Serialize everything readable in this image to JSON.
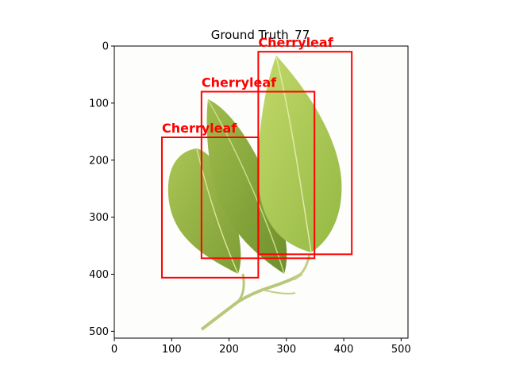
{
  "figure": {
    "title": "Ground Truth_77",
    "image": {
      "width": 512,
      "height": 512,
      "subject": "cherry leaves on white background"
    },
    "x_axis": {
      "ticks": [
        0,
        100,
        200,
        300,
        400,
        500
      ]
    },
    "y_axis": {
      "ticks": [
        0,
        100,
        200,
        300,
        400,
        500
      ]
    },
    "box_color": "#ff0000",
    "annotations": [
      {
        "label": "Cherryleaf",
        "x1": 83,
        "y1": 160,
        "x2": 251,
        "y2": 406
      },
      {
        "label": "Cherryleaf",
        "x1": 152,
        "y1": 80,
        "x2": 349,
        "y2": 372
      },
      {
        "label": "Cherryleaf",
        "x1": 251,
        "y1": 10,
        "x2": 414,
        "y2": 365
      }
    ]
  }
}
